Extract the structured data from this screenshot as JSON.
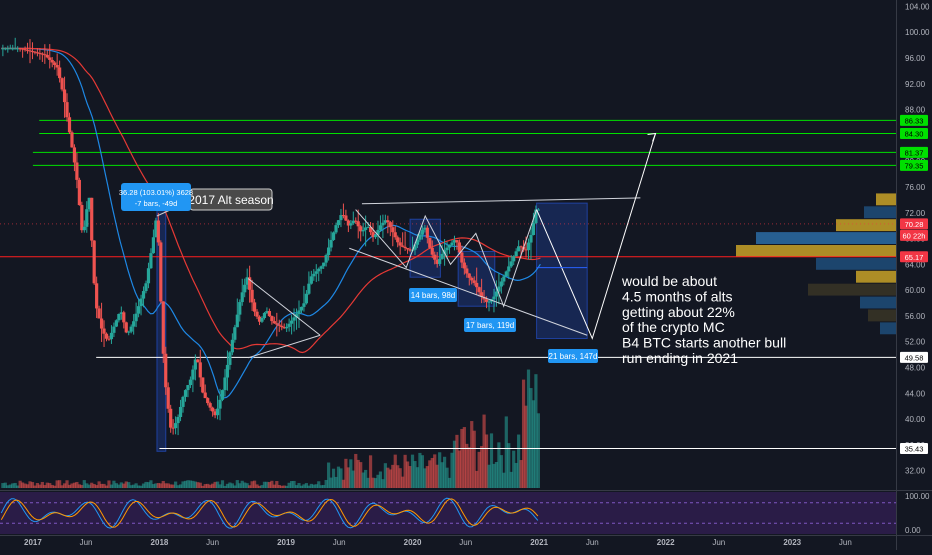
{
  "chart_data": {
    "type": "candlestick",
    "y_axis": {
      "ticks": [
        104,
        100,
        96,
        92,
        88,
        84,
        80,
        76,
        72,
        68,
        64,
        60,
        56,
        52,
        48,
        44,
        40,
        36,
        32
      ],
      "tick_labels": [
        "104.00",
        "100.00",
        "96.00",
        "92.00",
        "88.00",
        "84.00",
        "80.00",
        "76.00",
        "72.00",
        "68.00",
        "64.00",
        "60.00",
        "56.00",
        "52.00",
        "48.00",
        "44.00",
        "40.00",
        "36.00",
        "32.00"
      ],
      "range": [
        29,
        105
      ]
    },
    "x_axis": {
      "ticks": [
        2017,
        2017.42,
        2018,
        2018.42,
        2019,
        2019.42,
        2020,
        2020.42,
        2021,
        2021.42,
        2022,
        2022.42,
        2023,
        2023.42
      ],
      "tick_labels": [
        "2017",
        "Jun",
        "2018",
        "Jun",
        "2019",
        "Jun",
        "2020",
        "Jun",
        "2021",
        "Jun",
        "2022",
        "Jun",
        "2023",
        "Jun"
      ],
      "range": [
        2016.74,
        2023.82
      ]
    },
    "price_labels": [
      {
        "value": 86.33,
        "text": "86.33",
        "color": "#00e000"
      },
      {
        "value": 84.3,
        "text": "84.30",
        "color": "#00e000"
      },
      {
        "value": 81.37,
        "text": "81.37",
        "color": "#00e000"
      },
      {
        "value": 79.35,
        "text": "79.35",
        "color": "#00e000"
      },
      {
        "value": 70.28,
        "text": "70.28",
        "color": "#f23645"
      },
      {
        "value": 68.5,
        "text": "60 22h",
        "color": "#f23645"
      },
      {
        "value": 65.17,
        "text": "65.17",
        "color": "#f23645"
      },
      {
        "value": 49.58,
        "text": "49.58",
        "color": "#ffffff"
      },
      {
        "value": 35.43,
        "text": "35.43",
        "color": "#ffffff"
      }
    ],
    "horizontal_levels": [
      {
        "value": 86.33,
        "color": "#00e000",
        "from": 2017.05
      },
      {
        "value": 84.3,
        "color": "#00e000",
        "from": 2017.05
      },
      {
        "value": 81.37,
        "color": "#00e000",
        "from": 2017.0
      },
      {
        "value": 79.35,
        "color": "#00e000",
        "from": 2017.0
      },
      {
        "value": 65.17,
        "color": "#ff1e1e",
        "from": 2016.74
      },
      {
        "value": 49.58,
        "color": "#ffffff",
        "from": 2017.5
      },
      {
        "value": 35.43,
        "color": "#ffffff",
        "from": 2018.0
      }
    ],
    "annotations": [
      {
        "text": "2017 Alt season"
      },
      {
        "line1": "36.28 (103.01%) 3628",
        "line2": "-7 bars, -49d"
      },
      {
        "text": "14 bars, 98d"
      },
      {
        "text": "17 bars, 119d"
      },
      {
        "text": "21 bars, 147d"
      },
      {
        "lines": [
          "would be about",
          "4.5 months of alts",
          "getting about 22%",
          "of the crypto MC",
          "B4 BTC starts another bull",
          "run ending in 2021"
        ]
      }
    ],
    "price_path": [
      [
        2016.75,
        97.5
      ],
      [
        2016.9,
        97.5
      ],
      [
        2017.0,
        97
      ],
      [
        2017.1,
        96.5
      ],
      [
        2017.2,
        94.5
      ],
      [
        2017.25,
        90
      ],
      [
        2017.3,
        84
      ],
      [
        2017.35,
        78
      ],
      [
        2017.4,
        68
      ],
      [
        2017.45,
        75
      ],
      [
        2017.5,
        58
      ],
      [
        2017.55,
        54
      ],
      [
        2017.6,
        52
      ],
      [
        2017.7,
        57
      ],
      [
        2017.75,
        53
      ],
      [
        2017.8,
        55
      ],
      [
        2017.85,
        58
      ],
      [
        2017.9,
        61
      ],
      [
        2017.95,
        67
      ],
      [
        2017.98,
        71
      ],
      [
        2018.0,
        67
      ],
      [
        2018.03,
        52
      ],
      [
        2018.06,
        44
      ],
      [
        2018.1,
        38
      ],
      [
        2018.15,
        40
      ],
      [
        2018.2,
        44
      ],
      [
        2018.25,
        46
      ],
      [
        2018.3,
        50
      ],
      [
        2018.35,
        44
      ],
      [
        2018.4,
        42
      ],
      [
        2018.45,
        40.5
      ],
      [
        2018.5,
        44
      ],
      [
        2018.55,
        49
      ],
      [
        2018.6,
        54
      ],
      [
        2018.65,
        59
      ],
      [
        2018.7,
        62
      ],
      [
        2018.75,
        57
      ],
      [
        2018.8,
        55
      ],
      [
        2018.85,
        57
      ],
      [
        2018.9,
        55
      ],
      [
        2019.0,
        54
      ],
      [
        2019.08,
        56
      ],
      [
        2019.15,
        58
      ],
      [
        2019.2,
        62
      ],
      [
        2019.3,
        64
      ],
      [
        2019.35,
        67
      ],
      [
        2019.4,
        70
      ],
      [
        2019.45,
        72
      ],
      [
        2019.5,
        70
      ],
      [
        2019.55,
        71
      ],
      [
        2019.6,
        69
      ],
      [
        2019.65,
        70
      ],
      [
        2019.7,
        68
      ],
      [
        2019.75,
        70
      ],
      [
        2019.8,
        71
      ],
      [
        2019.9,
        67
      ],
      [
        2019.95,
        66.5
      ],
      [
        2020.0,
        66
      ],
      [
        2020.05,
        68
      ],
      [
        2020.1,
        70
      ],
      [
        2020.15,
        66
      ],
      [
        2020.2,
        64
      ],
      [
        2020.25,
        66
      ],
      [
        2020.3,
        67
      ],
      [
        2020.35,
        68
      ],
      [
        2020.4,
        64
      ],
      [
        2020.45,
        62
      ],
      [
        2020.5,
        61
      ],
      [
        2020.55,
        59
      ],
      [
        2020.6,
        58
      ],
      [
        2020.65,
        59
      ],
      [
        2020.7,
        61
      ],
      [
        2020.75,
        63
      ],
      [
        2020.8,
        65
      ],
      [
        2020.85,
        67
      ],
      [
        2020.9,
        66
      ],
      [
        2020.95,
        69
      ],
      [
        2020.98,
        72.5
      ]
    ],
    "projection_path": [
      [
        2020.98,
        72.5
      ],
      [
        2021.42,
        52.5
      ],
      [
        2021.92,
        84.3
      ]
    ],
    "volume_note": "histogram bars",
    "oscillator": {
      "tick_labels": [
        "100.00",
        "0.00"
      ],
      "range": [
        0,
        100
      ]
    },
    "colors": {
      "up": "#26a69a",
      "down": "#ef5350",
      "background": "#131722",
      "ma_red": "#e53935",
      "ma_blue": "#1e88e5",
      "highlight_box": "#2962ff"
    }
  }
}
